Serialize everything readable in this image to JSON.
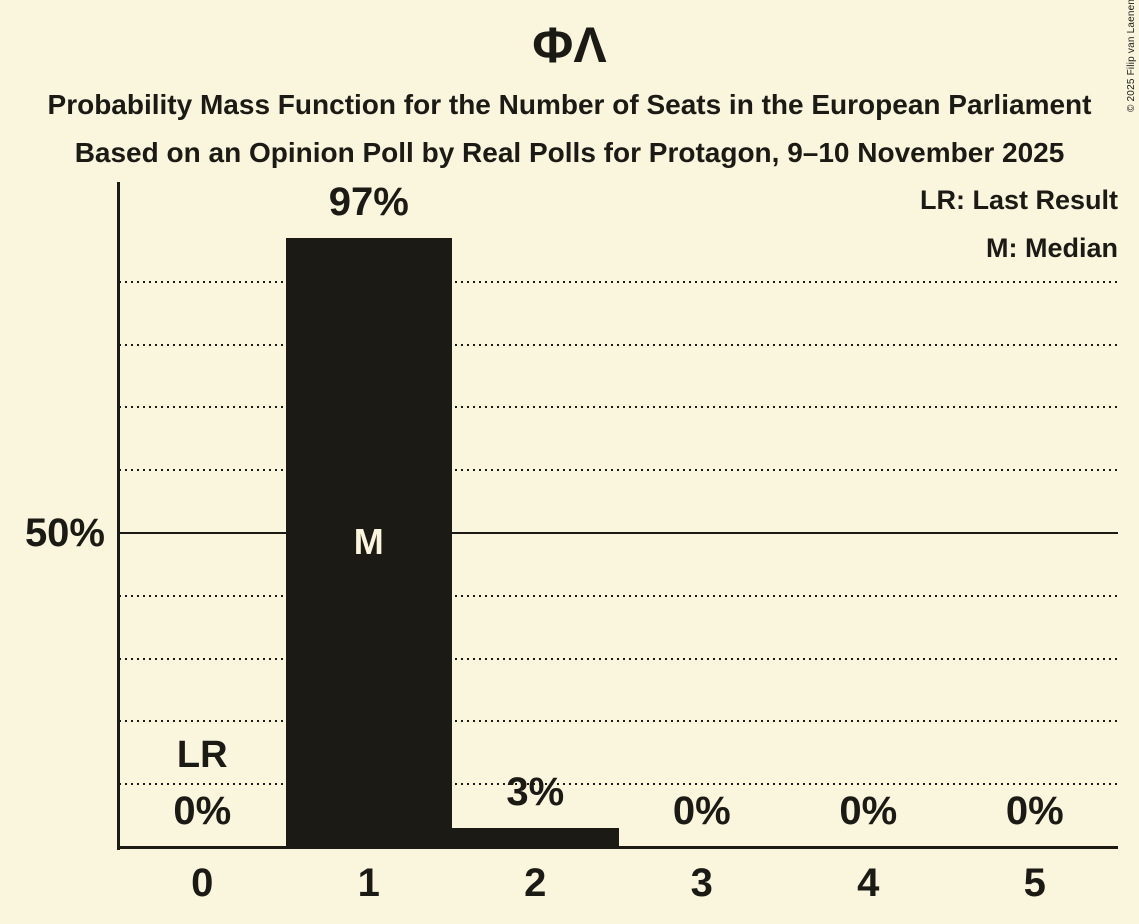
{
  "title": "ΦΛ",
  "subtitle1": "Probability Mass Function for the Number of Seats in the European Parliament",
  "subtitle2": "Based on an Opinion Poll by Real Polls for Protagon, 9–10 November 2025",
  "legend": {
    "lr": "LR: Last Result",
    "median": "M: Median"
  },
  "copyright": "© 2025 Filip van Laenen",
  "colors": {
    "background": "#FAF5DD",
    "bar": "#1B1A14",
    "text": "#1B1A14"
  },
  "chart_data": {
    "type": "bar",
    "title": "ΦΛ",
    "categories": [
      "0",
      "1",
      "2",
      "3",
      "4",
      "5"
    ],
    "values": [
      0,
      97,
      3,
      0,
      0,
      0
    ],
    "value_labels": [
      "0%",
      "97%",
      "3%",
      "0%",
      "0%",
      "0%"
    ],
    "ylim": [
      0,
      100
    ],
    "grid": "horizontal-dotted",
    "gridlines_pct": [
      10,
      20,
      30,
      40,
      50,
      60,
      70,
      80,
      90
    ],
    "solid_gridline_pct": 50,
    "y_ticks": [
      {
        "pct": 50,
        "label": "50%"
      }
    ],
    "legend_position": "top-right",
    "annotations": [
      {
        "id": "lr-marker-label",
        "text": "LR",
        "category": 0,
        "placement": "above-value-label"
      },
      {
        "id": "median-marker-label",
        "text": "M",
        "category": 1,
        "placement": "inside-bar"
      }
    ]
  }
}
